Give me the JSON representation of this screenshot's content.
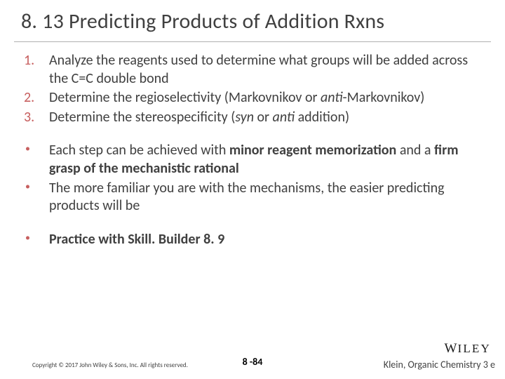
{
  "title": "8. 13 Predicting Products of Addition Rxns",
  "numbered": [
    {
      "pre": "Analyze the reagents used to determine what groups will be added across the C=C double bond"
    },
    {
      "pre": "Determine the regioselectivity (Markovnikov or ",
      "italic": "anti",
      "post": "-Markovnikov)"
    },
    {
      "pre": "Determine the stereospecificity (",
      "italic": "syn",
      "mid": " or ",
      "italic2": "anti",
      "post": " addition)"
    }
  ],
  "bullets1": [
    {
      "parts": [
        {
          "t": "Each step can be achieved with "
        },
        {
          "t": "minor reagent memorization",
          "b": true
        },
        {
          "t": " and a "
        },
        {
          "t": "firm grasp of the mechanistic rational",
          "b": true
        }
      ]
    },
    {
      "parts": [
        {
          "t": "The more familiar you are with the mechanisms, the easier predicting products will be"
        }
      ]
    }
  ],
  "bullets2": [
    {
      "parts": [
        {
          "t": "Practice with Skill. Builder 8. 9",
          "b": true
        }
      ]
    }
  ],
  "footer": {
    "copyright": "Copyright © 2017 John Wiley & Sons, Inc. All rights reserved.",
    "page": "8 -84",
    "book": "Klein, Organic Chemistry 3 e",
    "logo": "WILEY"
  },
  "colors": {
    "accent": "#c75f5f",
    "text": "#404040",
    "rule": "#b0b0b0",
    "bg": "#ffffff"
  }
}
